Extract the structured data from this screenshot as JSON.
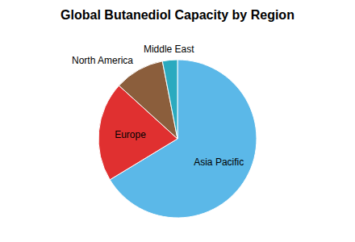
{
  "chart_data": {
    "type": "pie",
    "title": "Global Butanediol Capacity by Region",
    "categories": [
      "Asia Pacific",
      "Europe",
      "North America",
      "Middle East"
    ],
    "values": [
      65,
      20,
      10,
      3
    ],
    "colors": [
      "#5BB8E8",
      "#E03030",
      "#8B5E3C",
      "#2BAABF"
    ]
  }
}
